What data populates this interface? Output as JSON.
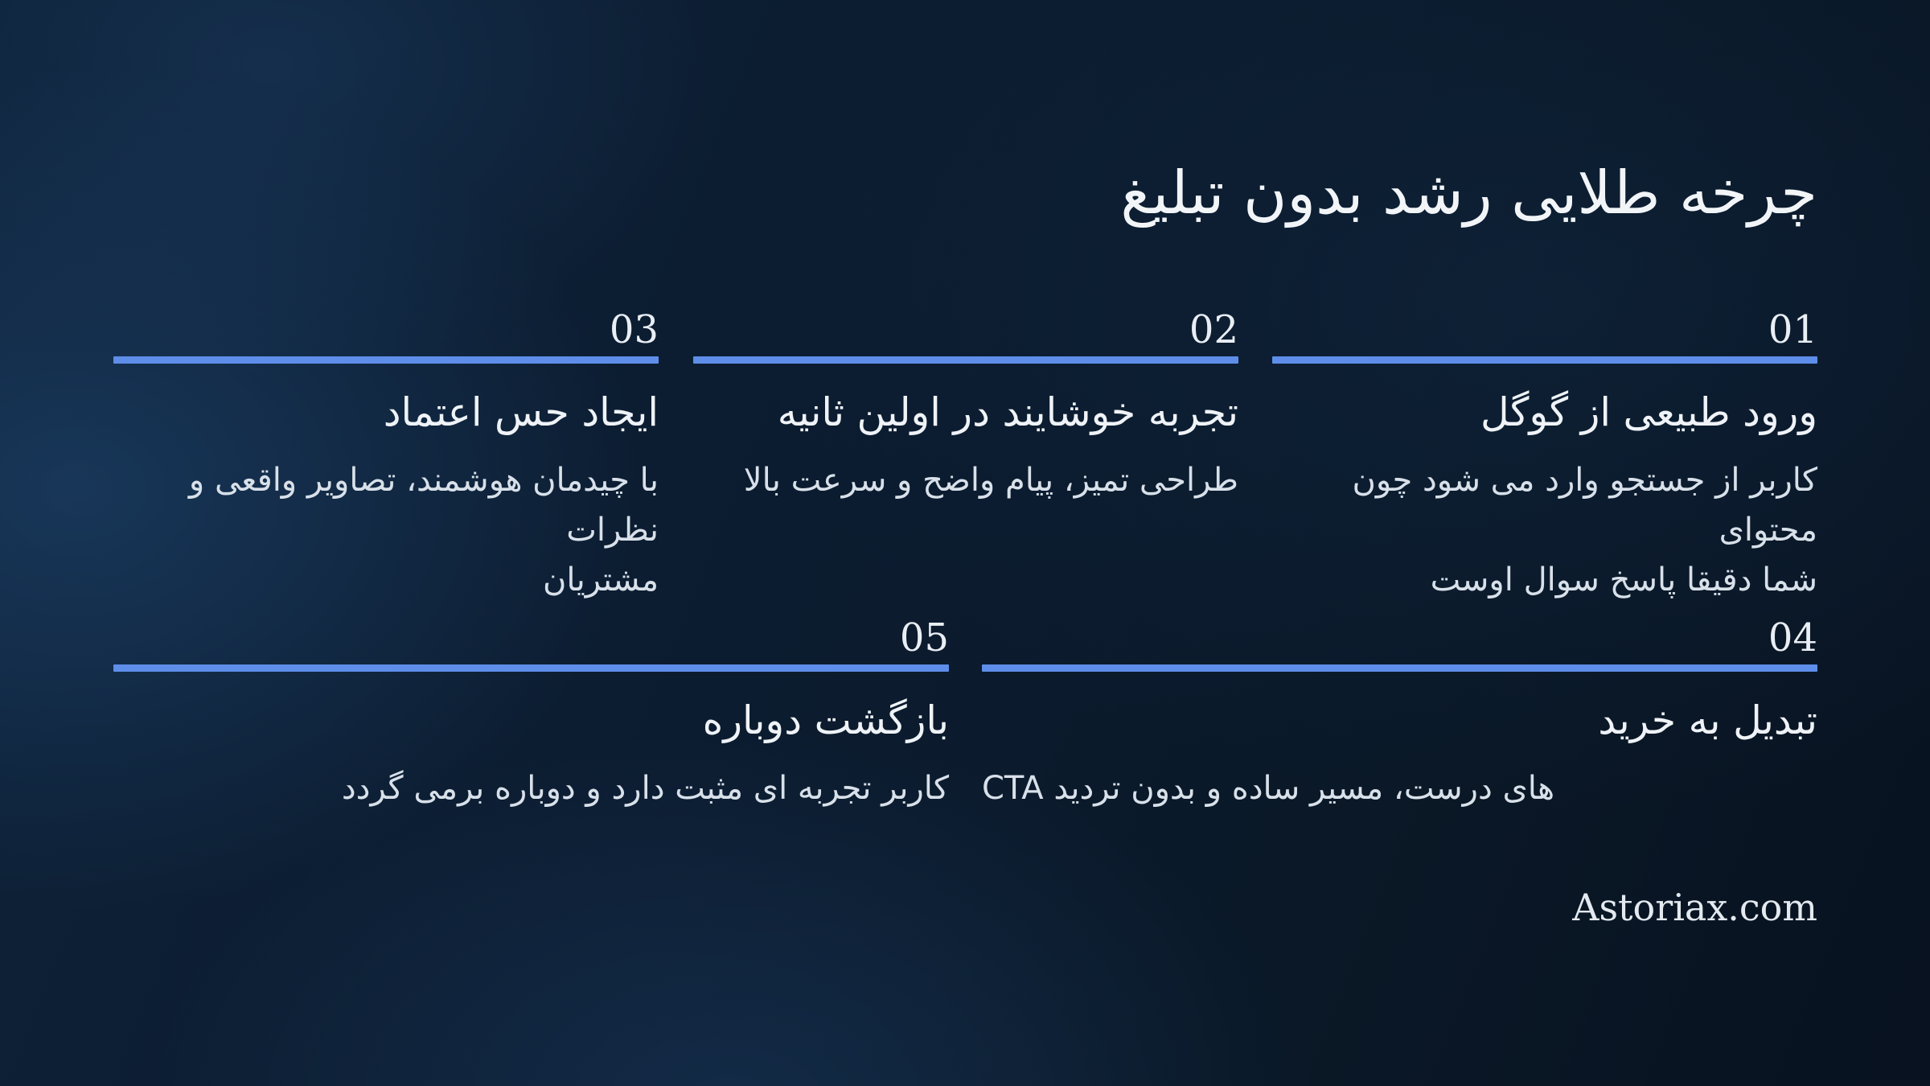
{
  "page": {
    "title": "چرخه طلایی رشد بدون تبلیغ",
    "footer_brand": "Astoriax.com",
    "accent_color": "#5e8ee9",
    "background_color": "#0c1c30"
  },
  "steps": [
    {
      "number": "01",
      "title": "ورود طبیعی از گوگل",
      "description": "کاربر از جستجو وارد می شود چون محتوای\nشما دقیقا پاسخ سوال اوست"
    },
    {
      "number": "02",
      "title": "تجربه خوشایند در اولین ثانیه",
      "description": "طراحی تمیز، پیام واضح و سرعت بالا"
    },
    {
      "number": "03",
      "title": "ایجاد حس اعتماد",
      "description": "با چیدمان هوشمند، تصاویر واقعی و نظرات\nمشتریان"
    },
    {
      "number": "04",
      "title": "تبدیل به خرید",
      "description": "CTA های درست، مسیر ساده و بدون تردید"
    },
    {
      "number": "05",
      "title": "بازگشت دوباره",
      "description": "کاربر تجربه ای مثبت دارد و دوباره برمی گردد"
    }
  ]
}
